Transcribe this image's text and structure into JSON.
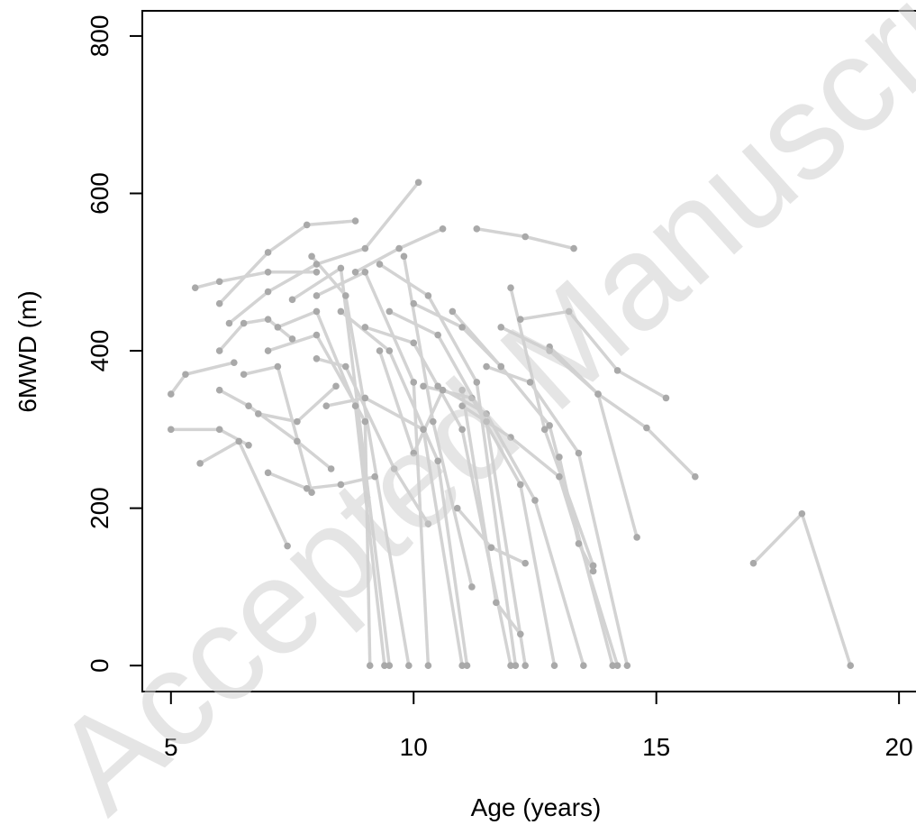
{
  "chart_data": {
    "type": "line",
    "x_label": "Age (years)",
    "y_label": "6MWD (m)",
    "watermark": "Accepted Manuscript",
    "xlim": [
      4.41,
      20.35
    ],
    "ylim": [
      -33,
      832
    ],
    "xticks": [
      5,
      10,
      15,
      20
    ],
    "yticks": [
      0,
      200,
      400,
      600,
      800
    ],
    "line_color": "#d3d3d3",
    "point_color": "#a9a9a9",
    "series": [
      {
        "x": [
          5,
          5.3,
          6.3
        ],
        "values": [
          345,
          370,
          385
        ]
      },
      {
        "x": [
          5,
          6,
          6.6
        ],
        "values": [
          300,
          300,
          280
        ]
      },
      {
        "x": [
          5.5,
          6,
          7,
          8
        ],
        "values": [
          480,
          488,
          500,
          500
        ]
      },
      {
        "x": [
          5.6,
          6.4,
          7.4
        ],
        "values": [
          257,
          285,
          152
        ]
      },
      {
        "x": [
          6,
          7,
          7.8,
          8.8
        ],
        "values": [
          460,
          525,
          560,
          565
        ]
      },
      {
        "x": [
          6,
          6.5,
          7,
          7.5
        ],
        "values": [
          400,
          435,
          440,
          415
        ]
      },
      {
        "x": [
          6,
          6.6,
          7.6,
          8.3
        ],
        "values": [
          350,
          330,
          285,
          250
        ]
      },
      {
        "x": [
          6.2,
          7,
          8,
          9,
          10.1
        ],
        "values": [
          435,
          475,
          510,
          530,
          614
        ]
      },
      {
        "x": [
          6.5,
          7.2,
          7.9
        ],
        "values": [
          370,
          380,
          220
        ]
      },
      {
        "x": [
          7,
          8,
          9,
          9.1
        ],
        "values": [
          400,
          420,
          310,
          0
        ]
      },
      {
        "x": [
          7.2,
          8,
          8.8,
          9.4
        ],
        "values": [
          430,
          450,
          330,
          0
        ]
      },
      {
        "x": [
          7.5,
          8.5,
          9.5
        ],
        "values": [
          465,
          505,
          0
        ]
      },
      {
        "x": [
          7.9,
          8.6,
          9.9
        ],
        "values": [
          520,
          470,
          0
        ]
      },
      {
        "x": [
          8,
          9,
          10,
          10.3
        ],
        "values": [
          470,
          500,
          360,
          0
        ]
      },
      {
        "x": [
          8.2,
          9,
          10.2,
          11
        ],
        "values": [
          330,
          340,
          300,
          0
        ]
      },
      {
        "x": [
          8.5,
          9.5,
          10.5,
          11.1
        ],
        "values": [
          450,
          400,
          260,
          0
        ]
      },
      {
        "x": [
          8.8,
          9.7,
          10.6
        ],
        "values": [
          500,
          530,
          555
        ]
      },
      {
        "x": [
          9,
          10,
          11,
          12
        ],
        "values": [
          430,
          410,
          300,
          0
        ]
      },
      {
        "x": [
          9.3,
          10.3,
          11.3,
          12.1
        ],
        "values": [
          510,
          470,
          360,
          0
        ]
      },
      {
        "x": [
          9.5,
          10.5,
          11.5,
          12.3
        ],
        "values": [
          450,
          420,
          310,
          0
        ]
      },
      {
        "x": [
          10,
          11,
          11.8
        ],
        "values": [
          460,
          430,
          380
        ]
      },
      {
        "x": [
          10.2,
          11.2,
          12.2,
          12.9
        ],
        "values": [
          355,
          340,
          230,
          0
        ]
      },
      {
        "x": [
          10.5,
          11.5,
          12.5,
          13.5
        ],
        "values": [
          355,
          320,
          210,
          0
        ]
      },
      {
        "x": [
          10.8,
          11.8,
          12.8,
          14.1
        ],
        "values": [
          450,
          380,
          305,
          0
        ]
      },
      {
        "x": [
          11,
          12,
          13,
          14.2
        ],
        "values": [
          330,
          290,
          240,
          0
        ]
      },
      {
        "x": [
          11.3,
          12.3,
          13.3
        ],
        "values": [
          555,
          545,
          530
        ]
      },
      {
        "x": [
          11.5,
          12.4,
          13.4,
          14.4
        ],
        "values": [
          380,
          360,
          270,
          0
        ]
      },
      {
        "x": [
          11.8,
          12.8,
          13.8,
          14.6
        ],
        "values": [
          430,
          400,
          345,
          163
        ]
      },
      {
        "x": [
          12.2,
          13.2,
          14.2,
          15.2
        ],
        "values": [
          440,
          450,
          375,
          340
        ]
      },
      {
        "x": [
          12.8,
          13.8,
          14.8,
          15.8
        ],
        "values": [
          405,
          345,
          302,
          240
        ]
      },
      {
        "x": [
          17,
          18,
          19
        ],
        "values": [
          130,
          193,
          0
        ]
      },
      {
        "x": [
          12,
          12.7,
          13.7
        ],
        "values": [
          480,
          300,
          127
        ]
      },
      {
        "x": [
          9.8,
          10.4,
          11.2
        ],
        "values": [
          520,
          310,
          100
        ]
      },
      {
        "x": [
          7,
          7.8,
          8.5,
          9.2
        ],
        "values": [
          245,
          225,
          230,
          240
        ]
      },
      {
        "x": [
          6.8,
          7.6,
          8.4
        ],
        "values": [
          320,
          310,
          355
        ]
      },
      {
        "x": [
          8,
          8.6,
          9.6,
          10.3
        ],
        "values": [
          390,
          380,
          250,
          180
        ]
      },
      {
        "x": [
          10.9,
          11.6,
          12.3
        ],
        "values": [
          200,
          150,
          130
        ]
      },
      {
        "x": [
          11,
          11.7,
          12.2
        ],
        "values": [
          350,
          80,
          40
        ]
      },
      {
        "x": [
          13,
          13.4,
          13.7
        ],
        "values": [
          265,
          155,
          120
        ]
      },
      {
        "x": [
          9.3,
          10,
          10.6
        ],
        "values": [
          400,
          270,
          350
        ]
      }
    ]
  }
}
